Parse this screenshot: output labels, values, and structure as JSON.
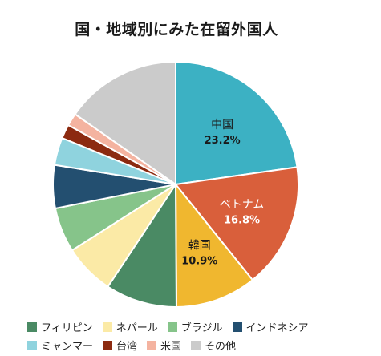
{
  "chart_data": {
    "type": "pie",
    "title": "国・地域別にみた在留外国人",
    "slices": [
      {
        "name": "中国",
        "value": 23.2,
        "color": "#3cb1c3",
        "label": "中国",
        "value_label": "23.2%",
        "label_color": "#1a1a1a"
      },
      {
        "name": "ベトナム",
        "value": 16.8,
        "color": "#d95f3b",
        "label": "ベトナム",
        "value_label": "16.8%",
        "label_color": "#ffffff"
      },
      {
        "name": "韓国",
        "value": 10.9,
        "color": "#f0b72f",
        "label": "韓国",
        "value_label": "10.9%",
        "label_color": "#1a1a1a"
      },
      {
        "name": "フィリピン",
        "value": 9.6,
        "color": "#4a8a64"
      },
      {
        "name": "ネパール",
        "value": 6.8,
        "color": "#fbeaa6"
      },
      {
        "name": "ブラジル",
        "value": 6.0,
        "color": "#86c48a"
      },
      {
        "name": "インドネシア",
        "value": 5.8,
        "color": "#234f70"
      },
      {
        "name": "ミャンマー",
        "value": 3.7,
        "color": "#8fd3de"
      },
      {
        "name": "台湾",
        "value": 1.9,
        "color": "#8c2a10"
      },
      {
        "name": "米国",
        "value": 1.7,
        "color": "#f4b3a0"
      },
      {
        "name": "その他",
        "value": 15.6,
        "color": "#cbcbcb"
      }
    ],
    "legend_rows": [
      [
        "フィリピン",
        "ネパール",
        "ブラジル",
        "インドネシア"
      ],
      [
        "ミャンマー",
        "台湾",
        "米国",
        "その他"
      ]
    ],
    "legend_placement": "bottom"
  }
}
